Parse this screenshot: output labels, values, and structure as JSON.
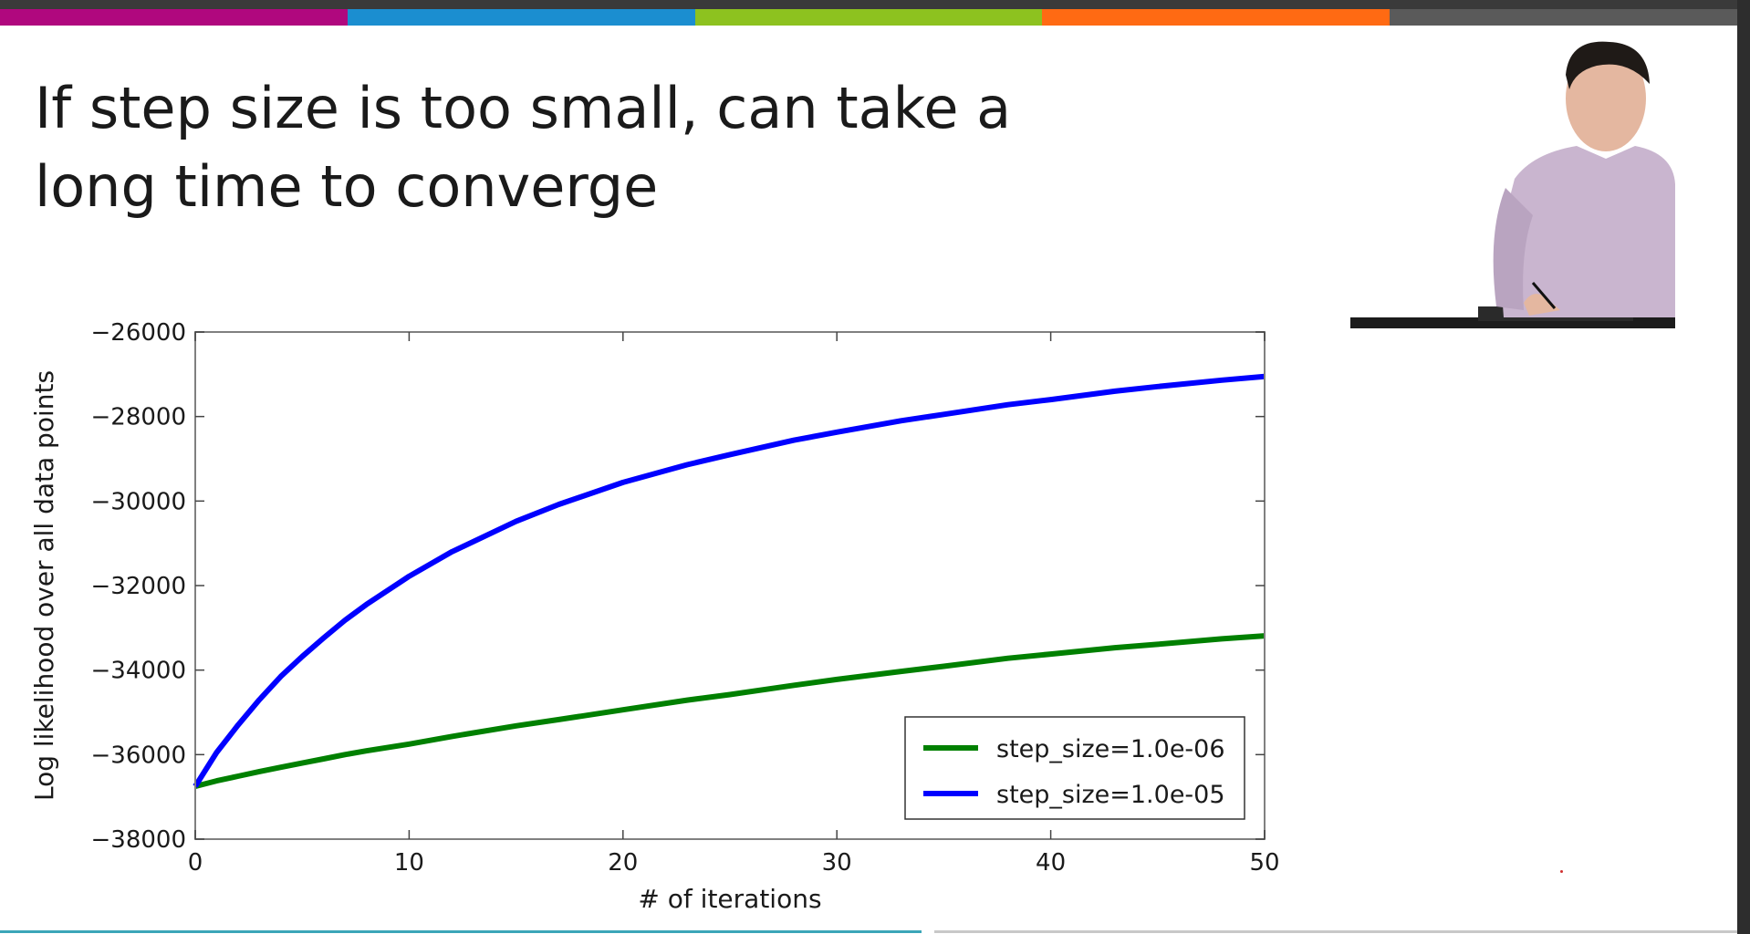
{
  "slide": {
    "title_lines": [
      "If step size is too small, can take a",
      "long time to converge"
    ],
    "accent_colors": [
      "#b0087e",
      "#1b8ed0",
      "#8dc21f",
      "#ff6a13",
      "#5a5a5a"
    ]
  },
  "presenter": {
    "icon": "presenter-video-icon"
  },
  "chart_data": {
    "type": "line",
    "title": "",
    "xlabel": "# of iterations",
    "ylabel": "Log likelihood over all data points",
    "xlim": [
      0,
      50
    ],
    "ylim": [
      -38000,
      -26000
    ],
    "x_ticks": [
      0,
      10,
      20,
      30,
      40,
      50
    ],
    "y_ticks": [
      -26000,
      -28000,
      -30000,
      -32000,
      -34000,
      -36000,
      -38000
    ],
    "x_tick_labels": [
      "0",
      "10",
      "20",
      "30",
      "40",
      "50"
    ],
    "y_tick_labels": [
      "−26000",
      "−28000",
      "−30000",
      "−32000",
      "−34000",
      "−36000",
      "−38000"
    ],
    "grid": false,
    "legend_position": "lower-right",
    "x": [
      0,
      1,
      2,
      3,
      4,
      5,
      6,
      7,
      8,
      10,
      12,
      15,
      17,
      20,
      23,
      25,
      28,
      30,
      33,
      35,
      38,
      40,
      43,
      45,
      48,
      50
    ],
    "series": [
      {
        "name": "step_size=1.0e-06",
        "color": "#008000",
        "values": [
          -36750,
          -36620,
          -36510,
          -36400,
          -36300,
          -36200,
          -36100,
          -36000,
          -35910,
          -35750,
          -35570,
          -35320,
          -35170,
          -34940,
          -34710,
          -34580,
          -34360,
          -34220,
          -34030,
          -33910,
          -33720,
          -33620,
          -33470,
          -33390,
          -33260,
          -33190
        ]
      },
      {
        "name": "step_size=1.0e-05",
        "color": "#0000ff",
        "values": [
          -36750,
          -35950,
          -35300,
          -34700,
          -34150,
          -33680,
          -33240,
          -32820,
          -32450,
          -31780,
          -31200,
          -30480,
          -30080,
          -29560,
          -29140,
          -28900,
          -28560,
          -28370,
          -28100,
          -27950,
          -27720,
          -27600,
          -27400,
          -27290,
          -27140,
          -27050
        ]
      }
    ]
  }
}
